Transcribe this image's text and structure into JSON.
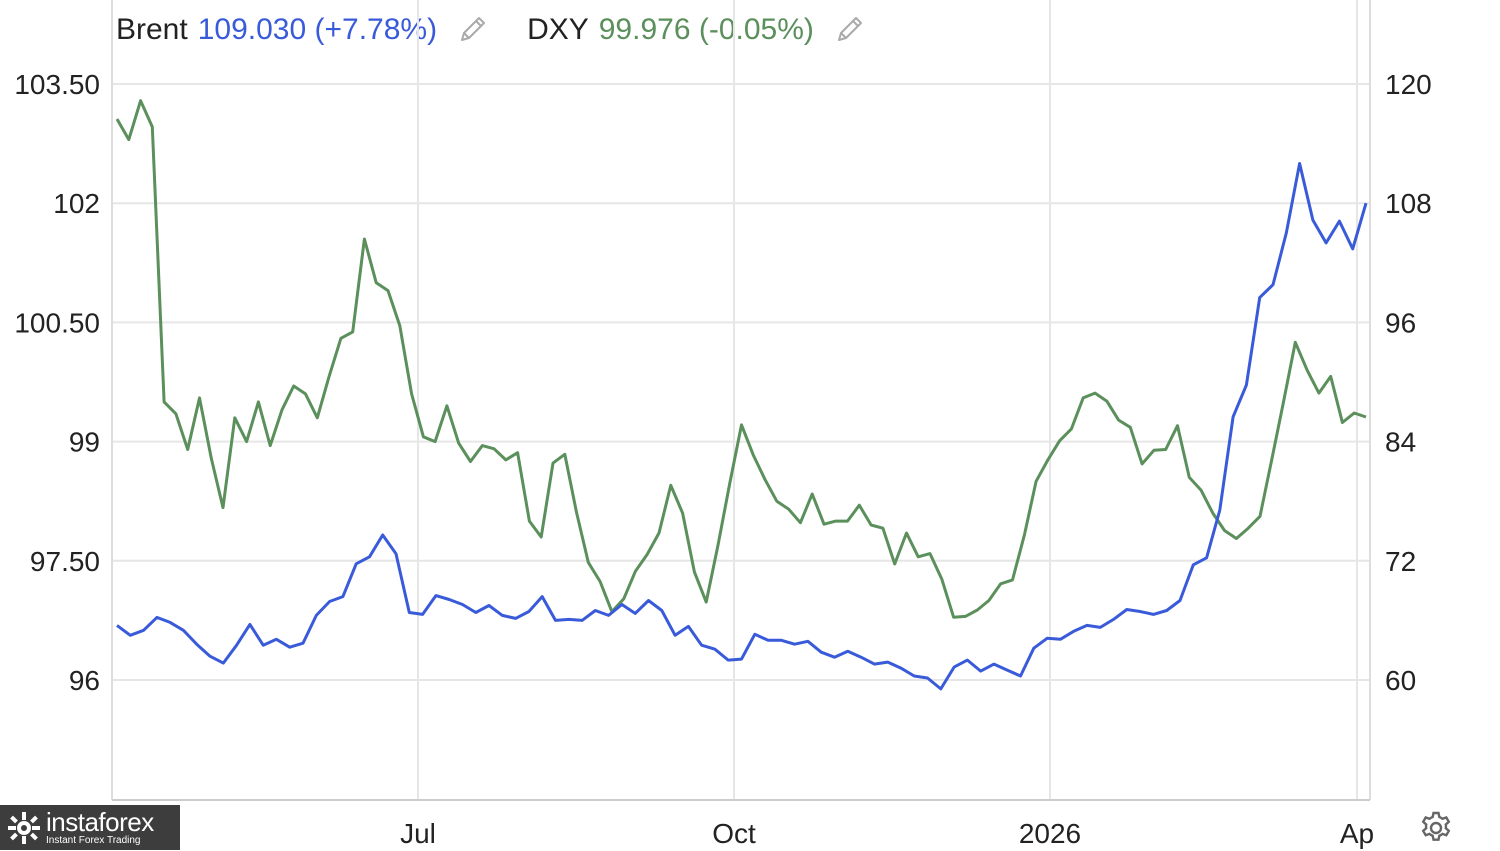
{
  "legend": [
    {
      "label": "Brent",
      "value": "109.030 (+7.78%)",
      "color": "#3a5bd9",
      "edit_icon": "pencil-icon"
    },
    {
      "label": "DXY",
      "value": "99.976 (-0.05%)",
      "color": "#5b8f5b",
      "edit_icon": "pencil-icon"
    }
  ],
  "watermark": {
    "brand": "instaforex",
    "tagline": "Instant Forex Trading"
  },
  "settings_icon": "gear-icon",
  "chart_data": {
    "type": "line",
    "grid": true,
    "x_ticks": [
      "Jul",
      "Oct",
      "2026",
      "Ap"
    ],
    "left_axis": {
      "ticks": [
        "103.50",
        "102",
        "100.50",
        "99",
        "97.50",
        "96"
      ],
      "ylim": [
        96,
        103.5
      ],
      "series": "DXY"
    },
    "right_axis": {
      "ticks": [
        "120",
        "108",
        "96",
        "84",
        "72",
        "60"
      ],
      "ylim": [
        60,
        120
      ],
      "series": "Brent"
    },
    "series": [
      {
        "name": "DXY",
        "axis": "left",
        "color": "#5b8f5b",
        "values": [
          103.06,
          102.8,
          103.29,
          102.96,
          99.5,
          99.35,
          98.9,
          99.55,
          98.79,
          98.17,
          99.3,
          99.0,
          99.5,
          98.95,
          99.4,
          99.7,
          99.6,
          99.3,
          99.82,
          100.3,
          100.38,
          101.55,
          101.0,
          100.9,
          100.46,
          99.6,
          99.06,
          99.0,
          99.45,
          98.98,
          98.75,
          98.95,
          98.91,
          98.77,
          98.86,
          98.0,
          97.8,
          98.73,
          98.84,
          98.11,
          97.48,
          97.24,
          96.86,
          97.02,
          97.37,
          97.58,
          97.85,
          98.45,
          98.1,
          97.36,
          96.98,
          97.69,
          98.47,
          99.21,
          98.83,
          98.52,
          98.25,
          98.15,
          97.98,
          98.34,
          97.96,
          98.0,
          98.0,
          98.2,
          97.95,
          97.91,
          97.46,
          97.85,
          97.55,
          97.59,
          97.27,
          96.79,
          96.8,
          96.88,
          97.0,
          97.21,
          97.26,
          97.82,
          98.5,
          98.77,
          99.01,
          99.16,
          99.55,
          99.61,
          99.51,
          99.27,
          99.18,
          98.72,
          98.89,
          98.9,
          99.2,
          98.55,
          98.39,
          98.1,
          97.88,
          97.78,
          97.91,
          98.06,
          98.77,
          99.5,
          100.25,
          99.9,
          99.61,
          99.82,
          99.24,
          99.36,
          99.31
        ]
      },
      {
        "name": "Brent",
        "axis": "right",
        "color": "#3a5bd9",
        "values": [
          65.5,
          64.5,
          65.0,
          66.3,
          65.8,
          65.0,
          63.6,
          62.4,
          61.7,
          63.5,
          65.6,
          63.5,
          64.1,
          63.3,
          63.7,
          66.5,
          67.9,
          68.4,
          71.7,
          72.4,
          74.6,
          72.7,
          66.8,
          66.6,
          68.5,
          68.1,
          67.6,
          66.8,
          67.5,
          66.5,
          66.2,
          66.9,
          68.4,
          66.0,
          66.1,
          66.0,
          67.0,
          66.5,
          67.6,
          66.7,
          68.0,
          67.0,
          64.5,
          65.4,
          63.5,
          63.1,
          62.0,
          62.1,
          64.6,
          64.0,
          64.0,
          63.6,
          63.9,
          62.8,
          62.3,
          62.9,
          62.3,
          61.6,
          61.8,
          61.2,
          60.4,
          60.2,
          59.1,
          61.3,
          62.0,
          60.9,
          61.6,
          61.0,
          60.4,
          63.2,
          64.2,
          64.1,
          64.9,
          65.5,
          65.3,
          66.1,
          67.1,
          66.9,
          66.6,
          67.0,
          68.0,
          71.6,
          72.3,
          77.1,
          86.5,
          89.7,
          98.5,
          99.8,
          105.0,
          112.0,
          106.3,
          104.0,
          106.2,
          103.4,
          108.0
        ]
      }
    ]
  }
}
